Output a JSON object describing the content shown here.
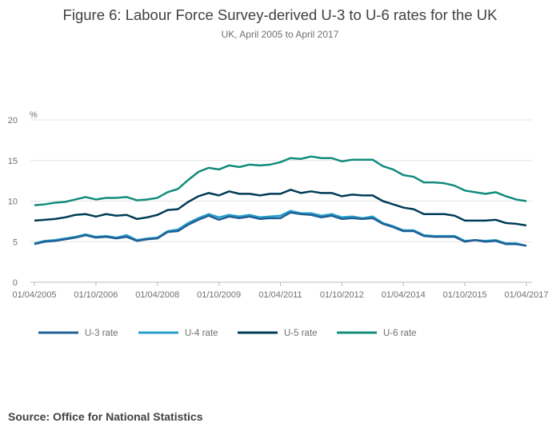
{
  "chart_data": {
    "type": "line",
    "title": "Figure 6: Labour Force Survey-derived U-3 to U-6 rates for the UK",
    "subtitle": "UK, April 2005 to April 2017",
    "ylabel": "%",
    "ylim": [
      0,
      20
    ],
    "yticks": [
      0,
      5,
      10,
      15,
      20
    ],
    "grid": true,
    "legend": "bottom",
    "xtick_labels": [
      "01/04/2005",
      "01/10/2006",
      "01/04/2008",
      "01/10/2009",
      "01/04/2011",
      "01/10/2012",
      "01/04/2014",
      "01/10/2015",
      "01/04/2017"
    ],
    "x": [
      "01/04/2005",
      "01/07/2005",
      "01/10/2005",
      "01/01/2006",
      "01/04/2006",
      "01/07/2006",
      "01/10/2006",
      "01/01/2007",
      "01/04/2007",
      "01/07/2007",
      "01/10/2007",
      "01/01/2008",
      "01/04/2008",
      "01/07/2008",
      "01/10/2008",
      "01/01/2009",
      "01/04/2009",
      "01/07/2009",
      "01/10/2009",
      "01/01/2010",
      "01/04/2010",
      "01/07/2010",
      "01/10/2010",
      "01/01/2011",
      "01/04/2011",
      "01/07/2011",
      "01/10/2011",
      "01/01/2012",
      "01/04/2012",
      "01/07/2012",
      "01/10/2012",
      "01/01/2013",
      "01/04/2013",
      "01/07/2013",
      "01/10/2013",
      "01/01/2014",
      "01/04/2014",
      "01/07/2014",
      "01/10/2014",
      "01/01/2015",
      "01/04/2015",
      "01/07/2015",
      "01/10/2015",
      "01/01/2016",
      "01/04/2016",
      "01/07/2016",
      "01/10/2016",
      "01/01/2017",
      "01/04/2017"
    ],
    "series": [
      {
        "name": "U-3 rate",
        "color": "#206095",
        "values": [
          4.7,
          5.0,
          5.1,
          5.3,
          5.5,
          5.8,
          5.5,
          5.6,
          5.4,
          5.6,
          5.1,
          5.3,
          5.4,
          6.2,
          6.3,
          7.1,
          7.7,
          8.2,
          7.7,
          8.1,
          7.9,
          8.1,
          7.8,
          7.9,
          7.9,
          8.6,
          8.4,
          8.3,
          8.0,
          8.2,
          7.8,
          7.9,
          7.8,
          7.9,
          7.2,
          6.8,
          6.3,
          6.3,
          5.7,
          5.6,
          5.6,
          5.6,
          5.0,
          5.2,
          5.0,
          5.1,
          4.7,
          4.7,
          4.5
        ]
      },
      {
        "name": "U-4 rate",
        "color": "#27a0cc",
        "values": [
          4.8,
          5.1,
          5.2,
          5.4,
          5.6,
          5.9,
          5.6,
          5.7,
          5.5,
          5.8,
          5.2,
          5.4,
          5.5,
          6.3,
          6.5,
          7.3,
          7.9,
          8.4,
          8.0,
          8.3,
          8.1,
          8.3,
          8.0,
          8.1,
          8.2,
          8.8,
          8.5,
          8.5,
          8.2,
          8.4,
          8.0,
          8.1,
          7.9,
          8.1,
          7.3,
          6.9,
          6.4,
          6.4,
          5.8,
          5.7,
          5.7,
          5.7,
          5.1,
          5.2,
          5.1,
          5.2,
          4.8,
          4.8,
          4.5
        ]
      },
      {
        "name": "U-5 rate",
        "color": "#003c57",
        "values": [
          7.6,
          7.7,
          7.8,
          8.0,
          8.3,
          8.4,
          8.1,
          8.4,
          8.2,
          8.3,
          7.8,
          8.0,
          8.3,
          8.9,
          9.0,
          9.9,
          10.6,
          11.0,
          10.7,
          11.2,
          10.9,
          10.9,
          10.7,
          10.9,
          10.9,
          11.4,
          11.0,
          11.2,
          11.0,
          11.0,
          10.6,
          10.8,
          10.7,
          10.7,
          10.0,
          9.6,
          9.2,
          9.0,
          8.4,
          8.4,
          8.4,
          8.2,
          7.6,
          7.6,
          7.6,
          7.7,
          7.3,
          7.2,
          7.0
        ]
      },
      {
        "name": "U-6 rate",
        "color": "#118c7b",
        "values": [
          9.5,
          9.6,
          9.8,
          9.9,
          10.2,
          10.5,
          10.2,
          10.4,
          10.4,
          10.5,
          10.1,
          10.2,
          10.4,
          11.1,
          11.5,
          12.6,
          13.6,
          14.1,
          13.9,
          14.4,
          14.2,
          14.5,
          14.4,
          14.5,
          14.8,
          15.3,
          15.2,
          15.5,
          15.3,
          15.3,
          14.9,
          15.1,
          15.1,
          15.1,
          14.3,
          13.9,
          13.2,
          13.0,
          12.3,
          12.3,
          12.2,
          11.9,
          11.3,
          11.1,
          10.9,
          11.1,
          10.6,
          10.2,
          10.0
        ]
      }
    ]
  },
  "source": "Source: Office for National Statistics"
}
